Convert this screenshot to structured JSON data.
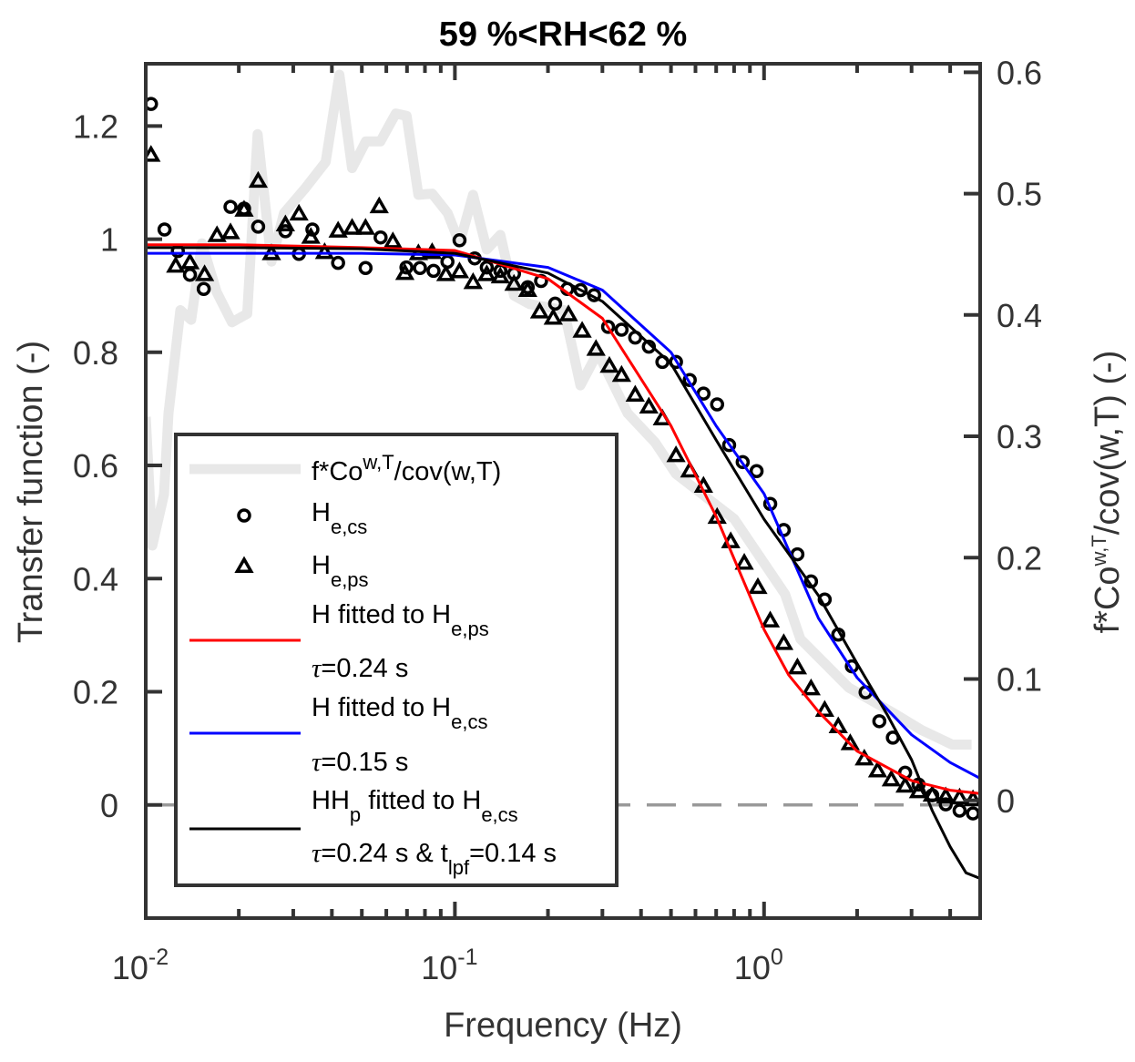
{
  "chart_data": {
    "type": "line",
    "title": "59 %<RH<62 %",
    "xlabel": "Frequency (Hz)",
    "ylabel": "Transfer function (-)",
    "ylabel_right": {
      "main": "f*Co",
      "sup": "w,T",
      "rest": "/cov(w,T) (-)"
    },
    "xscale": "log",
    "xlim": [
      0.01,
      5
    ],
    "ylim": [
      -0.2,
      1.31
    ],
    "ylim_right": [
      -0.097,
      0.607
    ],
    "xticks": [
      {
        "value": 0.01,
        "base": "10",
        "exp": "-2"
      },
      {
        "value": 0.1,
        "base": "10",
        "exp": "-1"
      },
      {
        "value": 1,
        "base": "10",
        "exp": "0"
      }
    ],
    "yticks": [
      {
        "value": 0,
        "label": "0"
      },
      {
        "value": 0.2,
        "label": "0.2"
      },
      {
        "value": 0.4,
        "label": "0.4"
      },
      {
        "value": 0.6,
        "label": "0.6"
      },
      {
        "value": 0.8,
        "label": "0.8"
      },
      {
        "value": 1,
        "label": "1"
      },
      {
        "value": 1.2,
        "label": "1.2"
      }
    ],
    "yticks_right": [
      {
        "value": 0,
        "label": "0"
      },
      {
        "value": 0.1,
        "label": "0.1"
      },
      {
        "value": 0.2,
        "label": "0.2"
      },
      {
        "value": 0.3,
        "label": "0.3"
      },
      {
        "value": 0.4,
        "label": "0.4"
      },
      {
        "value": 0.5,
        "label": "0.5"
      },
      {
        "value": 0.6,
        "label": "0.6"
      }
    ],
    "grid": false,
    "legend_placement": "bottom-left",
    "zero_line": {
      "value": 0,
      "style": "dashed",
      "color": "#999999"
    },
    "series": [
      {
        "name": "cospectrum",
        "axis": "right",
        "kind": "line",
        "color": "#e8e8e8",
        "x": [
          0.01,
          0.0105,
          0.01145,
          0.01185,
          0.01294,
          0.01403,
          0.0152,
          0.01695,
          0.019,
          0.0213,
          0.023,
          0.0255,
          0.028,
          0.0327,
          0.0382,
          0.0423,
          0.0465,
          0.0515,
          0.0574,
          0.0644,
          0.0698,
          0.0762,
          0.0844,
          0.0947,
          0.1035,
          0.1145,
          0.1268,
          0.1403,
          0.1553,
          0.1742,
          0.2255,
          0.2547,
          0.2897,
          0.362,
          0.444,
          0.519,
          0.8,
          1.169,
          1.311,
          1.877,
          2.58,
          3.23,
          4.06,
          4.69
        ],
        "y": [
          0.316,
          0.21,
          0.252,
          0.319,
          0.404,
          0.396,
          0.459,
          0.419,
          0.394,
          0.401,
          0.549,
          0.444,
          0.484,
          0.504,
          0.526,
          0.598,
          0.521,
          0.543,
          0.543,
          0.566,
          0.564,
          0.499,
          0.5,
          0.484,
          0.459,
          0.499,
          0.454,
          0.466,
          0.416,
          0.409,
          0.404,
          0.342,
          0.369,
          0.319,
          0.295,
          0.269,
          0.232,
          0.17,
          0.133,
          0.093,
          0.073,
          0.058,
          0.046,
          0.046
        ]
      },
      {
        "name": "He,cs",
        "axis": "left",
        "kind": "circle",
        "color": "#000000",
        "x": [
          0.0104,
          0.0115,
          0.0127,
          0.0139,
          0.0154,
          0.0188,
          0.0208,
          0.0231,
          0.0283,
          0.0313,
          0.0346,
          0.0419,
          0.0514,
          0.0575,
          0.0697,
          0.0771,
          0.0853,
          0.0946,
          0.1035,
          0.1159,
          0.1268,
          0.1403,
          0.1553,
          0.172,
          0.19,
          0.211,
          0.231,
          0.255,
          0.282,
          0.313,
          0.346,
          0.383,
          0.424,
          0.469,
          0.519,
          0.575,
          0.637,
          0.705,
          0.771,
          0.853,
          0.946,
          1.047,
          1.158,
          1.282,
          1.419,
          1.571,
          1.738,
          1.923,
          2.13,
          2.36,
          2.61,
          2.86,
          3.16,
          3.5,
          3.87,
          4.29,
          4.74
        ],
        "y": [
          1.239,
          1.017,
          0.979,
          0.937,
          0.912,
          1.057,
          1.054,
          1.022,
          1.014,
          0.974,
          1.017,
          0.958,
          0.949,
          1.003,
          0.95,
          0.949,
          0.944,
          0.96,
          0.998,
          0.966,
          0.95,
          0.944,
          0.939,
          0.915,
          0.926,
          0.886,
          0.912,
          0.91,
          0.901,
          0.845,
          0.84,
          0.826,
          0.81,
          0.783,
          0.783,
          0.751,
          0.727,
          0.708,
          0.636,
          0.606,
          0.59,
          0.532,
          0.486,
          0.443,
          0.395,
          0.363,
          0.301,
          0.245,
          0.199,
          0.148,
          0.119,
          0.057,
          0.036,
          0.017,
          0.001,
          -0.01,
          -0.015
        ]
      },
      {
        "name": "He,ps",
        "axis": "left",
        "kind": "triangle",
        "color": "#000000",
        "x": [
          0.0104,
          0.0125,
          0.0139,
          0.0155,
          0.017,
          0.0188,
          0.0208,
          0.0231,
          0.0255,
          0.0283,
          0.0313,
          0.0342,
          0.0379,
          0.0419,
          0.0465,
          0.0514,
          0.0569,
          0.063,
          0.0689,
          0.0762,
          0.0844,
          0.0935,
          0.1035,
          0.1145,
          0.1268,
          0.1403,
          0.1553,
          0.172,
          0.188,
          0.208,
          0.233,
          0.258,
          0.286,
          0.316,
          0.346,
          0.383,
          0.424,
          0.469,
          0.519,
          0.575,
          0.637,
          0.705,
          0.78,
          0.863,
          0.955,
          1.047,
          1.158,
          1.282,
          1.419,
          1.571,
          1.738,
          1.9,
          2.11,
          2.33,
          2.58,
          2.86,
          3.16,
          3.5,
          3.87,
          4.29,
          4.74
        ],
        "y": [
          1.148,
          0.952,
          0.958,
          0.937,
          1.006,
          1.011,
          1.051,
          1.102,
          0.974,
          1.025,
          1.044,
          1.003,
          0.976,
          1.014,
          1.019,
          1.019,
          1.057,
          0.995,
          0.939,
          0.974,
          0.976,
          0.937,
          0.942,
          0.923,
          0.937,
          0.933,
          0.92,
          0.909,
          0.871,
          0.86,
          0.866,
          0.837,
          0.805,
          0.775,
          0.759,
          0.724,
          0.703,
          0.682,
          0.617,
          0.59,
          0.563,
          0.508,
          0.465,
          0.427,
          0.384,
          0.325,
          0.285,
          0.242,
          0.205,
          0.167,
          0.138,
          0.108,
          0.081,
          0.06,
          0.044,
          0.033,
          0.023,
          0.017,
          0.014,
          0.012,
          0.009
        ]
      },
      {
        "name": "H fitted to He,ps (τ=0.24 s)",
        "axis": "left",
        "kind": "line",
        "color": "#ff0000",
        "x": [
          0.01,
          0.02,
          0.05,
          0.1,
          0.2,
          0.3,
          0.5,
          0.7,
          1,
          1.2,
          1.5,
          2,
          3,
          4,
          5
        ],
        "y": [
          0.99,
          0.99,
          0.985,
          0.98,
          0.93,
          0.86,
          0.67,
          0.51,
          0.31,
          0.23,
          0.165,
          0.095,
          0.043,
          0.026,
          0.02
        ]
      },
      {
        "name": "H fitted to He,cs (τ=0.15 s)",
        "axis": "left",
        "kind": "line",
        "color": "#0000ff",
        "x": [
          0.01,
          0.02,
          0.05,
          0.1,
          0.2,
          0.3,
          0.5,
          0.7,
          1,
          1.5,
          2,
          3,
          4,
          5
        ],
        "y": [
          0.975,
          0.975,
          0.975,
          0.972,
          0.95,
          0.91,
          0.8,
          0.67,
          0.55,
          0.33,
          0.225,
          0.124,
          0.075,
          0.047
        ]
      },
      {
        "name": "HHp fitted to He,cs (τ=0.24 s & tlpf=0.14 s)",
        "axis": "left",
        "kind": "line",
        "color": "#000000",
        "x": [
          0.01,
          0.02,
          0.05,
          0.1,
          0.2,
          0.3,
          0.5,
          0.7,
          1,
          1.5,
          2,
          2.5,
          3,
          3.5,
          4,
          4.5,
          5
        ],
        "y": [
          0.985,
          0.985,
          0.983,
          0.975,
          0.94,
          0.89,
          0.78,
          0.645,
          0.505,
          0.37,
          0.25,
          0.16,
          0.08,
          -0.01,
          -0.074,
          -0.12,
          -0.13
        ]
      }
    ],
    "legend": [
      {
        "parts": [
          {
            "t": "f*Co"
          },
          {
            "t": "w,T",
            "sup": true
          },
          {
            "t": "/cov(w,T)"
          }
        ]
      },
      {
        "parts": [
          {
            "t": "H"
          },
          {
            "t": "e,cs",
            "sub": true
          }
        ]
      },
      {
        "parts": [
          {
            "t": "H"
          },
          {
            "t": "e,ps",
            "sub": true
          }
        ]
      },
      {
        "parts": [
          {
            "t": "H fitted to H"
          },
          {
            "t": "e,ps",
            "sub": true
          }
        ],
        "line2": [
          {
            "t": "τ",
            "tau": true
          },
          {
            "t": "=0.24 s"
          }
        ]
      },
      {
        "parts": [
          {
            "t": "H fitted to H"
          },
          {
            "t": "e,cs",
            "sub": true
          }
        ],
        "line2": [
          {
            "t": "τ",
            "tau": true
          },
          {
            "t": "=0.15 s"
          }
        ]
      },
      {
        "parts": [
          {
            "t": "HH"
          },
          {
            "t": "p",
            "sub": true
          },
          {
            "t": " fitted to H"
          },
          {
            "t": "e,cs",
            "sub": true
          }
        ],
        "line2": [
          {
            "t": "τ",
            "tau": true
          },
          {
            "t": "=0.24 s & t"
          },
          {
            "t": "lpf",
            "sub": true
          },
          {
            "t": "=0.14 s"
          }
        ]
      }
    ]
  }
}
